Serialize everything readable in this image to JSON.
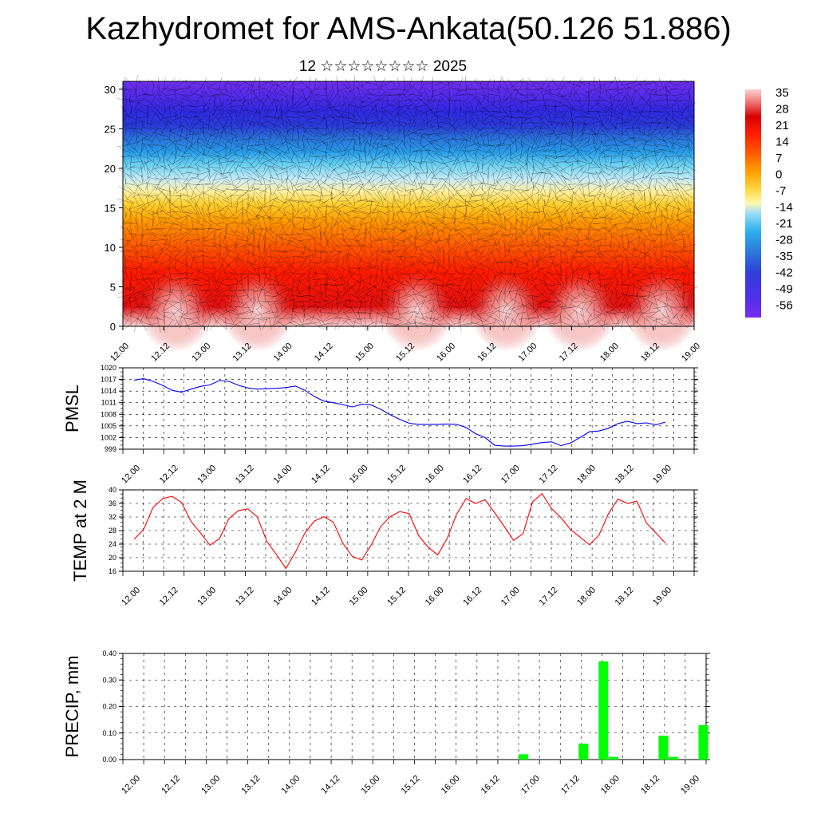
{
  "header": {
    "title": "Kazhydromet for AMS-Ankata(50.126 51.886)",
    "subtitle": "12 ☆☆☆☆☆☆☆☆ 2025"
  },
  "colors": {
    "pmsl_line": "#0000ff",
    "temp_line": "#ff0000",
    "precip_bar": "#00ff00",
    "grid": "#000000"
  },
  "x_ticks": [
    "12.00",
    "12.12",
    "13.00",
    "13.12",
    "14.00",
    "14.12",
    "15.00",
    "15.12",
    "16.00",
    "16.12",
    "17.00",
    "17.12",
    "18.00",
    "18.12",
    "19.00"
  ],
  "chart_data": [
    {
      "type": "heatmap",
      "title": "Kazhydromet for AMS-Ankata(50.126 51.886)",
      "xlabel": "",
      "ylabel": "",
      "x_range": [
        0,
        14
      ],
      "ylim": [
        0,
        31
      ],
      "y_ticks": [
        0,
        5,
        10,
        15,
        20,
        25,
        30
      ],
      "colorbar_labels": [
        "35",
        "28",
        "21",
        "14",
        "7",
        "0",
        "-7",
        "-14",
        "-21",
        "-28",
        "-35",
        "-42",
        "-49",
        "-56"
      ],
      "colorbar_colors": [
        "#fbd0d0",
        "#f08080",
        "#e02020",
        "#cc0000",
        "#ff2a00",
        "#ff6a00",
        "#ffae00",
        "#ffd84a",
        "#fff7a0",
        "#c9ecf8",
        "#6fd0f0",
        "#2ea0e8",
        "#3a6cd8",
        "#3a3ae0",
        "#5a28e8",
        "#7a2cf0"
      ]
    },
    {
      "type": "line",
      "ylabel": "PMSL",
      "ylim": [
        999,
        1020
      ],
      "y_ticks": [
        999,
        1002,
        1005,
        1008,
        1011,
        1014,
        1017,
        1020
      ],
      "x": [
        0,
        0.5,
        1,
        1.5,
        2,
        2.5,
        3,
        3.5,
        4,
        4.5,
        5,
        5.5,
        6,
        6.5,
        7,
        7.5,
        8,
        8.5,
        9,
        9.5,
        10,
        10.5,
        11,
        11.5,
        12,
        12.5,
        13,
        13.5,
        14,
        14.5,
        15,
        15.5,
        16,
        16.5,
        17,
        17.5,
        18,
        18.5,
        19,
        19.5,
        20,
        20.5,
        21,
        21.5,
        22,
        22.5,
        23,
        23.5,
        24,
        24.5,
        25,
        25.5,
        26,
        26.5,
        27,
        27.5,
        28
      ],
      "values": [
        1016.8,
        1017.2,
        1016.5,
        1015.5,
        1014.2,
        1013.7,
        1014.5,
        1015.2,
        1015.6,
        1016.7,
        1016.5,
        1015.5,
        1014.8,
        1014.5,
        1014.6,
        1014.7,
        1014.9,
        1015.3,
        1014.2,
        1012.6,
        1011.4,
        1011.0,
        1010.5,
        1009.9,
        1010.6,
        1010.4,
        1009.3,
        1007.9,
        1006.7,
        1005.7,
        1005.4,
        1005.4,
        1005.4,
        1005.5,
        1005.4,
        1004.6,
        1003.0,
        1002.0,
        1000.0,
        999.8,
        999.8,
        999.9,
        1000.3,
        1000.7,
        1000.9,
        999.9,
        1000.6,
        1002.0,
        1003.5,
        1003.7,
        1004.4,
        1005.6,
        1006.2,
        1005.6,
        1005.8,
        1005.3,
        1006.0
      ]
    },
    {
      "type": "line",
      "ylabel": "TEMP at 2 M",
      "ylim": [
        16,
        40
      ],
      "y_ticks": [
        16,
        20,
        24,
        28,
        32,
        36,
        40
      ],
      "x": [
        0,
        0.5,
        1,
        1.5,
        2,
        2.5,
        3,
        3.5,
        4,
        4.5,
        5,
        5.5,
        6,
        6.5,
        7,
        7.5,
        8,
        8.5,
        9,
        9.5,
        10,
        10.5,
        11,
        11.5,
        12,
        12.5,
        13,
        13.5,
        14,
        14.5,
        15,
        15.5,
        16,
        16.5,
        17,
        17.5,
        18,
        18.5,
        19,
        19.5,
        20,
        20.5,
        21,
        21.5,
        22,
        22.5,
        23,
        23.5,
        24,
        24.5,
        25,
        25.5,
        26,
        26.5,
        27,
        27.5,
        28
      ],
      "values": [
        25.4,
        28.3,
        34.8,
        37.4,
        38.1,
        36.3,
        30.7,
        27.3,
        23.7,
        25.6,
        31.5,
        33.9,
        34.4,
        32.0,
        24.8,
        21.0,
        16.8,
        21.6,
        27.3,
        30.8,
        32.1,
        30.5,
        24.3,
        20.4,
        19.3,
        23.8,
        29.2,
        32.1,
        33.6,
        33.0,
        26.5,
        23.1,
        20.8,
        25.7,
        32.9,
        37.4,
        36.0,
        37.1,
        33.3,
        29.3,
        25.1,
        27.1,
        36.5,
        38.9,
        34.5,
        31.8,
        28.3,
        26.1,
        23.8,
        26.7,
        33.0,
        37.3,
        36.0,
        36.7,
        30.2,
        27.3,
        24.3
      ]
    },
    {
      "type": "bar",
      "ylabel": "PRECIP, mm",
      "ylim": [
        0,
        0.4
      ],
      "y_ticks": [
        "0.00",
        "0.10",
        "0.20",
        "0.30",
        "0.40"
      ],
      "x": [
        19.5,
        22.5,
        23.5,
        24,
        26.5,
        27,
        28.5
      ],
      "values": [
        0.02,
        0.06,
        0.37,
        0.01,
        0.09,
        0.01,
        0.13
      ]
    }
  ]
}
